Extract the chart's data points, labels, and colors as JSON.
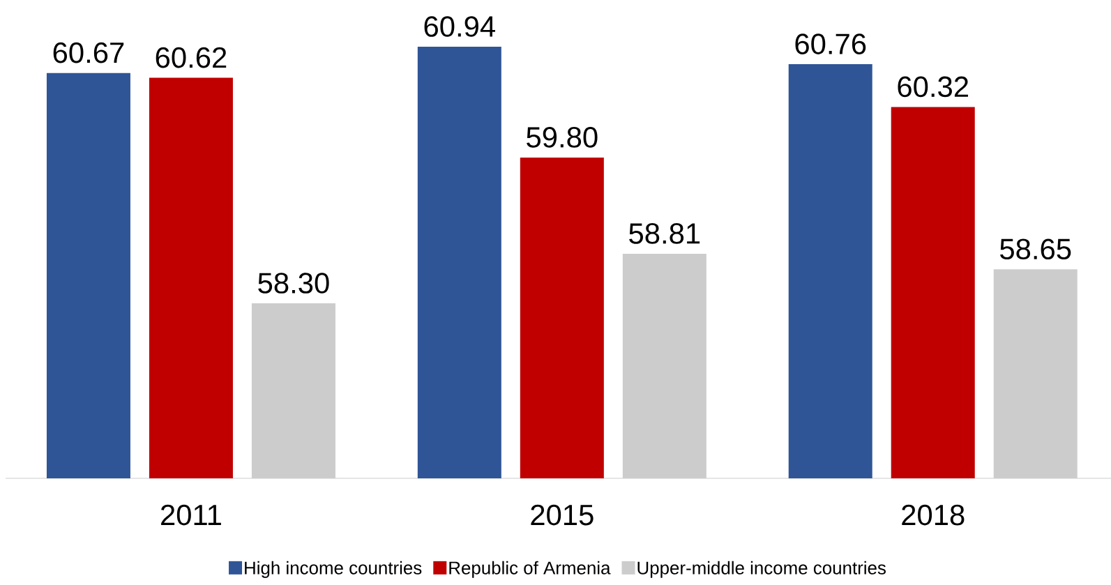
{
  "chart_data": {
    "type": "bar",
    "categories": [
      "2011",
      "2015",
      "2018"
    ],
    "series": [
      {
        "name": "High income countries",
        "color": "#2f5597",
        "values": [
          60.67,
          60.94,
          60.76
        ],
        "value_labels": [
          "60.67",
          "60.94",
          "60.76"
        ]
      },
      {
        "name": "Republic of Armenia",
        "color": "#c00000",
        "values": [
          60.62,
          59.8,
          60.32
        ],
        "value_labels": [
          "60.62",
          "59.80",
          "60.32"
        ]
      },
      {
        "name": "Upper-middle income countries",
        "color": "#cccccc",
        "values": [
          58.3,
          58.81,
          58.65
        ],
        "value_labels": [
          "58.30",
          "58.81",
          "58.65"
        ]
      }
    ],
    "ylim": [
      56.5,
      60.94
    ],
    "tick_labels": "x",
    "legend": "bottom",
    "grid": false
  }
}
